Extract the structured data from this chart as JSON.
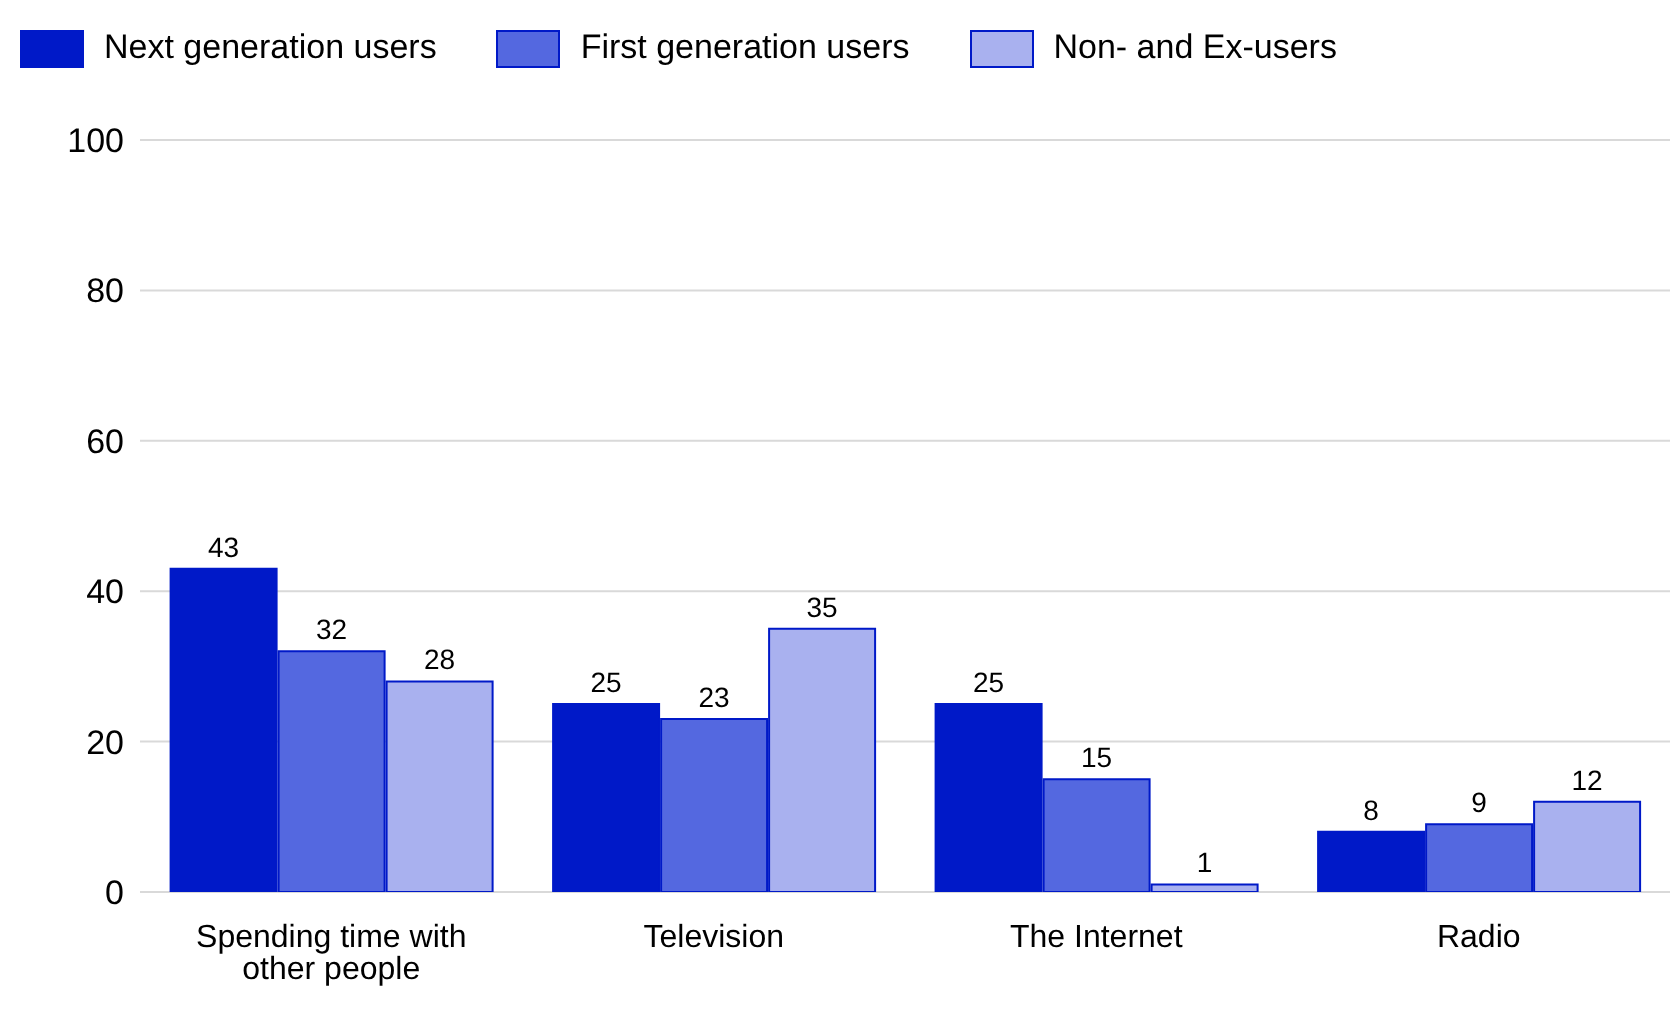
{
  "chart_data": {
    "type": "bar",
    "categories": [
      "Spending time with other people",
      "Television",
      "The Internet",
      "Radio"
    ],
    "series": [
      {
        "name": "Next generation users",
        "color": "#0019c8",
        "values": [
          43,
          25,
          25,
          8
        ]
      },
      {
        "name": "First generation users",
        "color": "#5468e0",
        "values": [
          32,
          23,
          15,
          9
        ]
      },
      {
        "name": "Non- and Ex-users",
        "color": "#a9b1ef",
        "values": [
          28,
          35,
          1,
          12
        ]
      }
    ],
    "ylim": [
      0,
      100
    ],
    "yticks": [
      0,
      20,
      40,
      60,
      80,
      100
    ],
    "grid": "y",
    "legend": "top left",
    "data_labels": true
  }
}
